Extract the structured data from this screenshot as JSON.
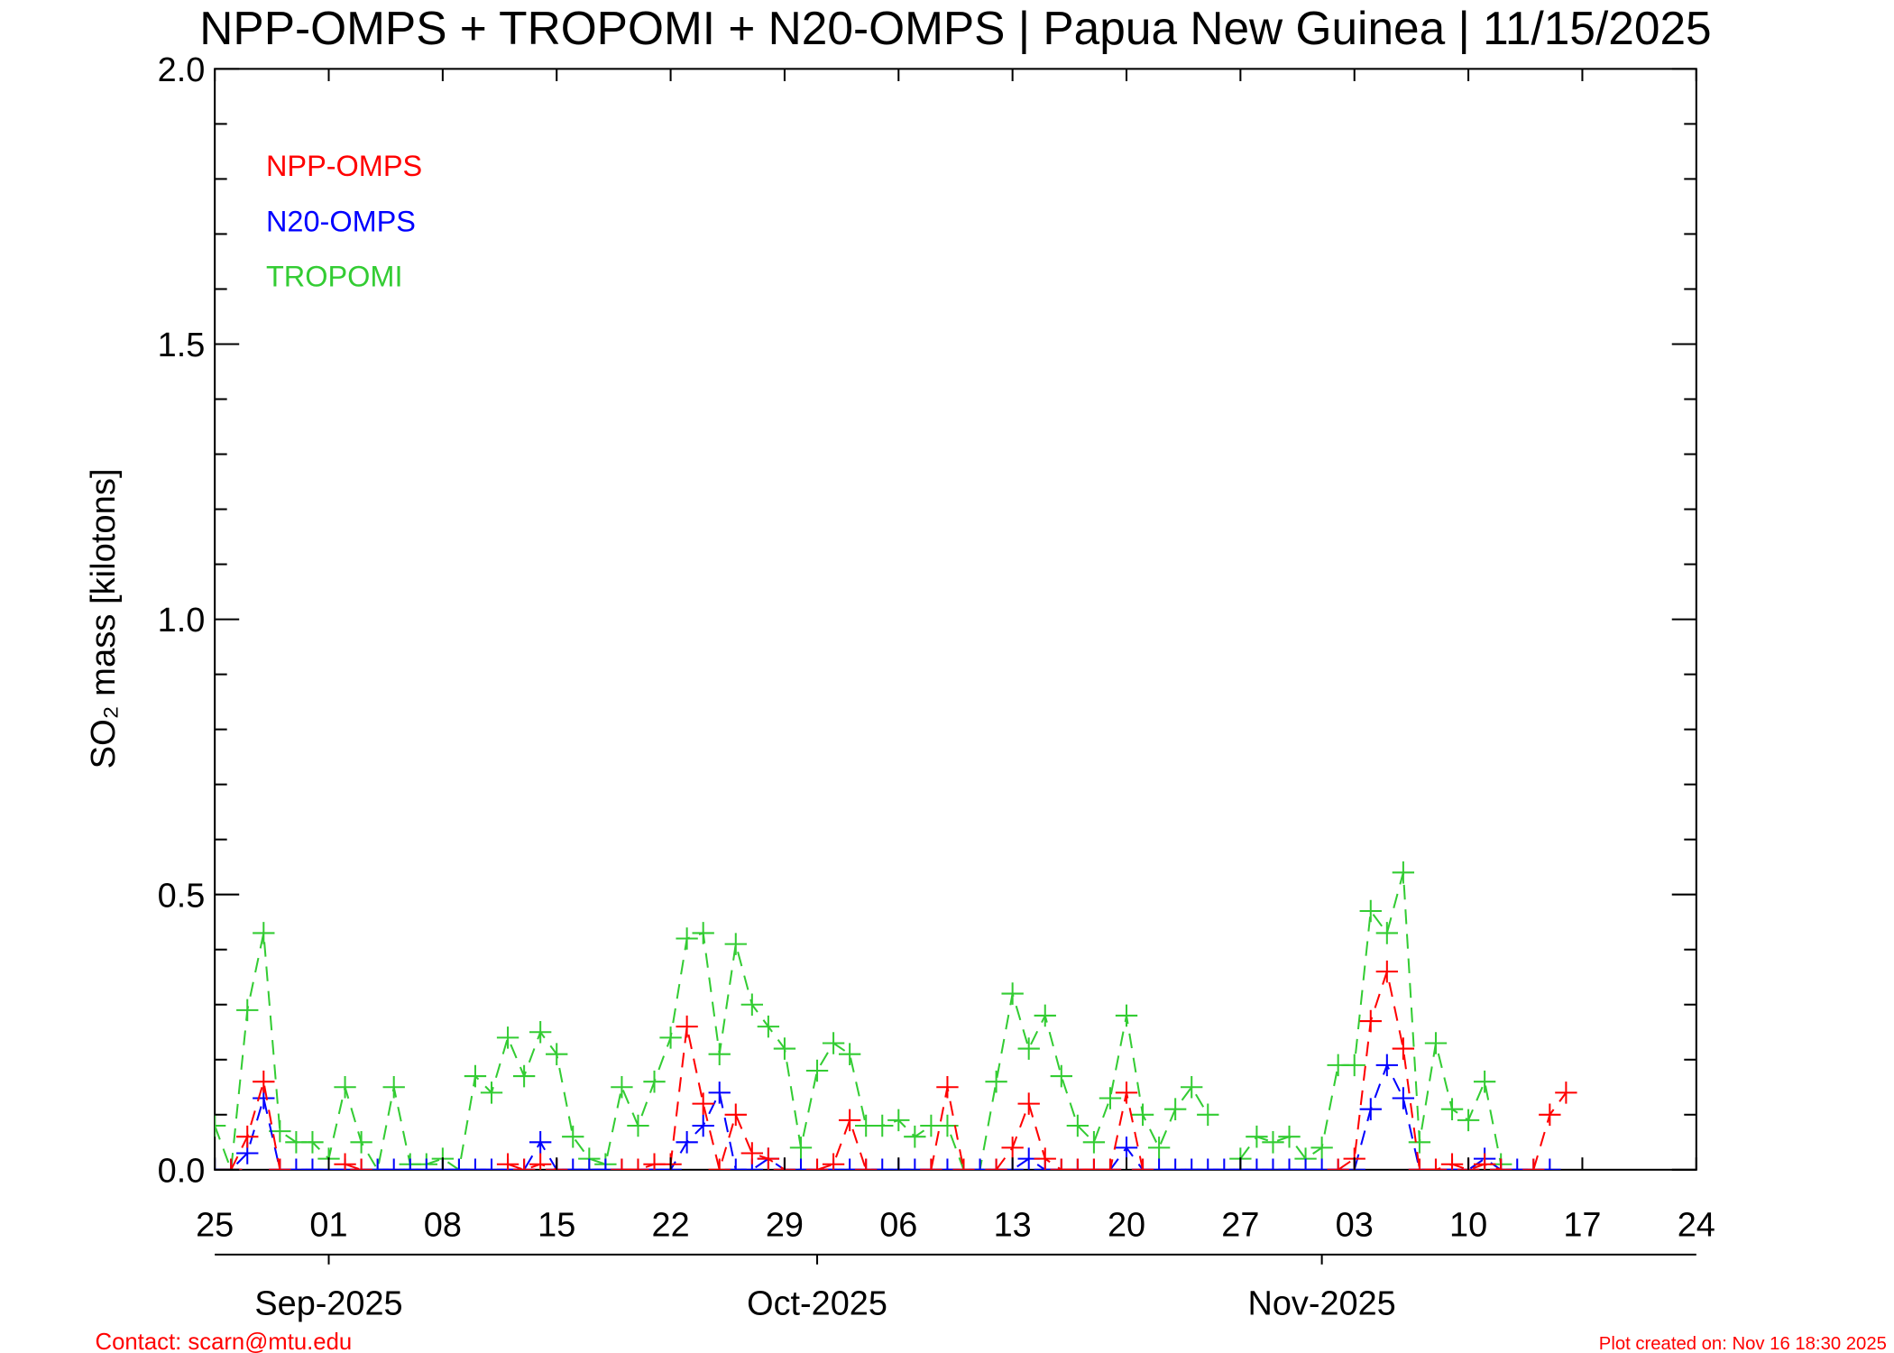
{
  "chart_data": {
    "type": "line",
    "title": "NPP-OMPS + TROPOMI + N20-OMPS | Papua New Guinea | 11/15/2025",
    "y_label": "SO₂ mass [kilotons]",
    "x": [
      "2025-08-25",
      "2025-08-26",
      "2025-08-27",
      "2025-08-28",
      "2025-08-29",
      "2025-08-30",
      "2025-08-31",
      "2025-09-01",
      "2025-09-02",
      "2025-09-03",
      "2025-09-04",
      "2025-09-05",
      "2025-09-06",
      "2025-09-07",
      "2025-09-08",
      "2025-09-09",
      "2025-09-10",
      "2025-09-11",
      "2025-09-12",
      "2025-09-13",
      "2025-09-14",
      "2025-09-15",
      "2025-09-16",
      "2025-09-17",
      "2025-09-18",
      "2025-09-19",
      "2025-09-20",
      "2025-09-21",
      "2025-09-22",
      "2025-09-23",
      "2025-09-24",
      "2025-09-25",
      "2025-09-26",
      "2025-09-27",
      "2025-09-28",
      "2025-09-29",
      "2025-09-30",
      "2025-10-01",
      "2025-10-02",
      "2025-10-03",
      "2025-10-04",
      "2025-10-05",
      "2025-10-06",
      "2025-10-07",
      "2025-10-08",
      "2025-10-09",
      "2025-10-10",
      "2025-10-11",
      "2025-10-12",
      "2025-10-13",
      "2025-10-14",
      "2025-10-15",
      "2025-10-16",
      "2025-10-17",
      "2025-10-18",
      "2025-10-19",
      "2025-10-20",
      "2025-10-21",
      "2025-10-22",
      "2025-10-23",
      "2025-10-24",
      "2025-10-25",
      "2025-10-26",
      "2025-10-27",
      "2025-10-28",
      "2025-10-29",
      "2025-10-30",
      "2025-10-31",
      "2025-11-01",
      "2025-11-02",
      "2025-11-03",
      "2025-11-04",
      "2025-11-05",
      "2025-11-06",
      "2025-11-07",
      "2025-11-08",
      "2025-11-09",
      "2025-11-10",
      "2025-11-11",
      "2025-11-12",
      "2025-11-13",
      "2025-11-14",
      "2025-11-15",
      "2025-11-16"
    ],
    "series": [
      {
        "name": "NPP-OMPS",
        "color": "#ff0000",
        "values": [
          null,
          0,
          0.06,
          0.16,
          0,
          null,
          null,
          null,
          0.01,
          0,
          null,
          null,
          null,
          null,
          null,
          null,
          null,
          null,
          0.01,
          0,
          0.01,
          0,
          null,
          null,
          null,
          0,
          0,
          0.01,
          0.01,
          0.26,
          0.12,
          0,
          0.1,
          0.03,
          0.02,
          0,
          null,
          0,
          0.01,
          0.09,
          0,
          null,
          null,
          null,
          0,
          0.15,
          0,
          null,
          0,
          0.04,
          0.12,
          0.02,
          0,
          0,
          0,
          0,
          0.14,
          0,
          null,
          null,
          null,
          null,
          null,
          null,
          null,
          null,
          null,
          null,
          null,
          0,
          0.02,
          0.27,
          0.36,
          0.22,
          0,
          0,
          0.01,
          0,
          0.01,
          0,
          null,
          0,
          0.1,
          0.14
        ]
      },
      {
        "name": "N20-OMPS",
        "color": "#0000ff",
        "values": [
          0,
          0,
          0.03,
          0.13,
          0,
          0,
          0,
          0,
          0,
          0,
          0,
          0,
          0,
          0,
          0,
          0,
          0,
          0,
          0,
          0,
          0.05,
          0,
          0,
          0,
          0,
          0,
          0,
          0,
          0,
          0.05,
          0.08,
          0.14,
          0,
          0,
          0.02,
          0,
          0,
          0,
          0,
          0,
          0,
          0,
          0,
          0,
          0,
          0,
          0,
          0,
          0,
          0,
          0.02,
          0,
          0,
          0,
          0,
          0,
          0.04,
          0,
          0,
          0,
          0,
          0,
          0,
          0,
          0,
          0,
          0,
          0,
          0,
          0,
          0,
          0.11,
          0.19,
          0.13,
          0,
          0,
          0,
          0,
          0.02,
          0,
          0,
          0,
          0,
          null
        ]
      },
      {
        "name": "TROPOMI",
        "color": "#33cc33",
        "values": [
          0.08,
          0,
          0.29,
          0.43,
          0.07,
          0.05,
          0.05,
          0.02,
          0.15,
          0.05,
          0,
          0.15,
          0.01,
          0.01,
          0.02,
          0,
          0.17,
          0.14,
          0.24,
          0.17,
          0.25,
          0.21,
          0.06,
          0.02,
          0.01,
          0.15,
          0.08,
          0.16,
          0.24,
          0.42,
          0.43,
          0.21,
          0.41,
          0.3,
          0.26,
          0.22,
          0.04,
          0.18,
          0.23,
          0.21,
          0.08,
          0.08,
          0.09,
          0.06,
          0.08,
          0.08,
          0,
          0,
          0.16,
          0.32,
          0.22,
          0.28,
          0.17,
          0.08,
          0.05,
          0.13,
          0.28,
          0.1,
          0.04,
          0.11,
          0.15,
          0.1,
          null,
          0.02,
          0.06,
          0.05,
          0.06,
          0.02,
          0.04,
          0.19,
          0.19,
          0.47,
          0.43,
          0.54,
          0.05,
          0.23,
          0.11,
          0.09,
          0.16,
          0.01,
          null,
          null,
          null,
          null
        ]
      }
    ],
    "xlim": [
      "2025-08-25",
      "2025-11-24"
    ],
    "xticks": [
      {
        "value": "2025-08-25",
        "label": "25"
      },
      {
        "value": "2025-09-01",
        "label": "01"
      },
      {
        "value": "2025-09-08",
        "label": "08"
      },
      {
        "value": "2025-09-15",
        "label": "15"
      },
      {
        "value": "2025-09-22",
        "label": "22"
      },
      {
        "value": "2025-09-29",
        "label": "29"
      },
      {
        "value": "2025-10-06",
        "label": "06"
      },
      {
        "value": "2025-10-13",
        "label": "13"
      },
      {
        "value": "2025-10-20",
        "label": "20"
      },
      {
        "value": "2025-10-27",
        "label": "27"
      },
      {
        "value": "2025-11-03",
        "label": "03"
      },
      {
        "value": "2025-11-10",
        "label": "10"
      },
      {
        "value": "2025-11-17",
        "label": "17"
      },
      {
        "value": "2025-11-24",
        "label": "24"
      }
    ],
    "month_ticks": [
      {
        "value": "2025-09-01",
        "label": "Sep-2025"
      },
      {
        "value": "2025-10-01",
        "label": "Oct-2025"
      },
      {
        "value": "2025-11-01",
        "label": "Nov-2025"
      }
    ],
    "ylim": [
      0,
      2
    ],
    "yticks": [
      {
        "value": 0,
        "label": "0.0"
      },
      0.5,
      {
        "value": 1,
        "label": "1.0"
      },
      1.5,
      {
        "value": 2,
        "label": "2.0"
      }
    ],
    "yminorticks": [
      0.1,
      0.2,
      0.3,
      0.4,
      0.6,
      0.7,
      0.8,
      0.9,
      1.1,
      1.2,
      1.3,
      1.4,
      1.6,
      1.7,
      1.8,
      1.9
    ],
    "line_style": "dashed",
    "marker": "plus",
    "contact": "Contact: scarn@mtu.edu",
    "created": "Plot created on: Nov 16 18:30 2025"
  }
}
